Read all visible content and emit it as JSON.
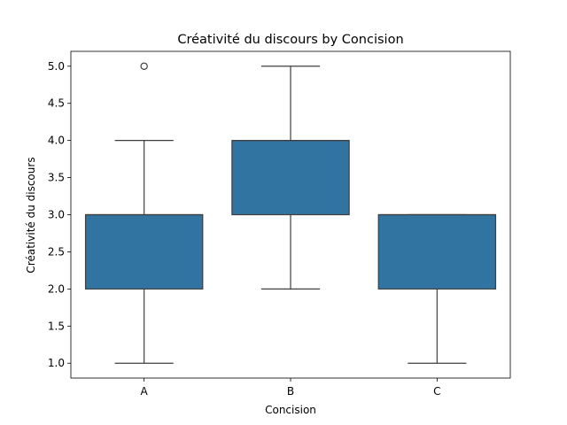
{
  "chart_data": {
    "type": "box",
    "title": "Créativité du discours by Concision",
    "xlabel": "Concision",
    "ylabel": "Créativité du discours",
    "categories": [
      "A",
      "B",
      "C"
    ],
    "ylim": [
      0.8,
      5.2
    ],
    "yticks": [
      1.0,
      1.5,
      2.0,
      2.5,
      3.0,
      3.5,
      4.0,
      4.5,
      5.0
    ],
    "ytick_labels": [
      "1.0",
      "1.5",
      "2.0",
      "2.5",
      "3.0",
      "3.5",
      "4.0",
      "4.5",
      "5.0"
    ],
    "boxes": [
      {
        "category": "A",
        "whisker_low": 1.0,
        "q1": 2.0,
        "median": 3.0,
        "q3": 3.0,
        "whisker_high": 4.0,
        "outliers": [
          5.0
        ]
      },
      {
        "category": "B",
        "whisker_low": 2.0,
        "q1": 3.0,
        "median": 4.0,
        "q3": 4.0,
        "whisker_high": 5.0,
        "outliers": []
      },
      {
        "category": "C",
        "whisker_low": 1.0,
        "q1": 2.0,
        "median": 3.0,
        "q3": 3.0,
        "whisker_high": 3.0,
        "outliers": []
      }
    ],
    "box_color": "#3274a1",
    "line_color": "#3f3f3f",
    "grid": false,
    "legend": "none"
  }
}
